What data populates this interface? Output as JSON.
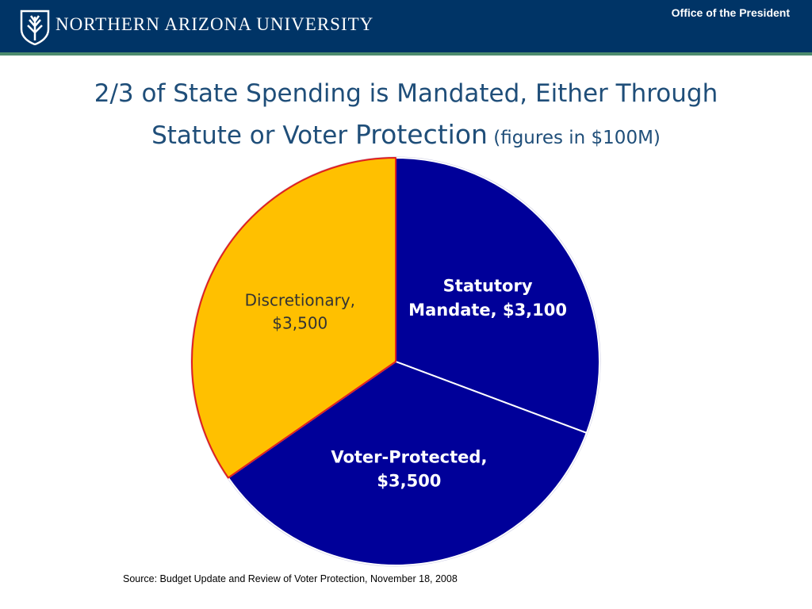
{
  "header": {
    "university_name": "NORTHERN ARIZONA UNIVERSITY",
    "office": "Office of the President",
    "logo_icon": "nau-shield-logo-icon"
  },
  "slide": {
    "title_line1": "2/3 of State Spending is Mandated, Either Through",
    "title_line2_a": "Statute or Voter ",
    "title_line2_b": "Protection",
    "title_line2_c": " (figures in $100M)"
  },
  "chart_data": {
    "type": "pie",
    "title": "",
    "slices": [
      {
        "name": "Statutory Mandate",
        "label_line1": "Statutory",
        "label_line2": "Mandate, $3,100",
        "value": 3100,
        "color": "#000099",
        "label_color": "#ffffff",
        "bold": true
      },
      {
        "name": "Voter-Protected",
        "label_line1": "Voter-Protected,",
        "label_line2": "$3,500",
        "value": 3500,
        "color": "#000099",
        "label_color": "#ffffff",
        "bold": true
      },
      {
        "name": "Discretionary",
        "label_line1": "Discretionary,",
        "label_line2": "$3,500",
        "value": 3500,
        "color": "#ffc000",
        "label_color": "#333333",
        "bold": false
      }
    ],
    "start_angle": "12 o'clock",
    "direction": "clockwise"
  },
  "footer": {
    "source": "Source:  Budget Update and Review of Voter Protection, November 18, 2008"
  }
}
